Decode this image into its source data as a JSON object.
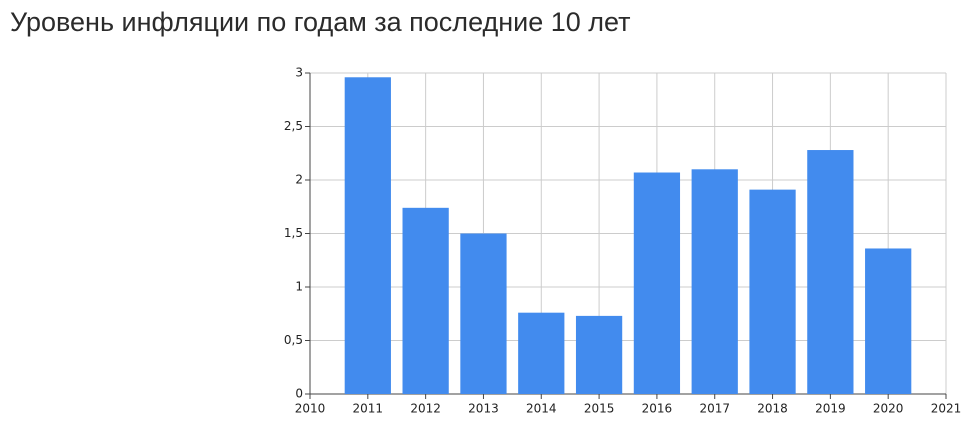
{
  "chart_data": {
    "type": "bar",
    "title": "Уровень инфляции по годам за последние 10 лет",
    "x": [
      2011,
      2012,
      2013,
      2014,
      2015,
      2016,
      2017,
      2018,
      2019,
      2020
    ],
    "values": [
      2.96,
      1.74,
      1.5,
      0.76,
      0.73,
      2.07,
      2.1,
      1.91,
      2.28,
      1.36
    ],
    "color": "#428bee",
    "xlim": [
      2010,
      2021
    ],
    "xticks": [
      2010,
      2011,
      2012,
      2013,
      2014,
      2015,
      2016,
      2017,
      2018,
      2019,
      2020,
      2021
    ],
    "ylim": [
      0,
      3
    ],
    "yticks": [
      0,
      {
        "value": 0.5,
        "label": "0,5"
      },
      1,
      {
        "value": 1.5,
        "label": "1,5"
      },
      2,
      {
        "value": 2.5,
        "label": "2,5"
      },
      3
    ],
    "grid": true
  }
}
